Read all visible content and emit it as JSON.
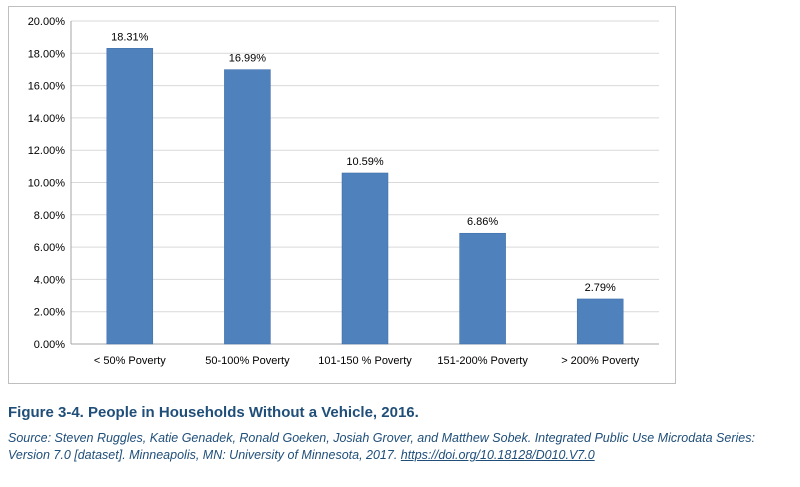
{
  "chart_data": {
    "type": "bar",
    "title": "",
    "xlabel": "",
    "ylabel": "",
    "categories": [
      "< 50% Poverty",
      "50-100% Poverty",
      "101-150 % Poverty",
      "151-200% Poverty",
      "> 200% Poverty"
    ],
    "values": [
      18.31,
      16.99,
      10.59,
      6.86,
      2.79
    ],
    "data_labels": [
      "18.31%",
      "16.99%",
      "10.59%",
      "6.86%",
      "2.79%"
    ],
    "ylim": [
      0,
      20
    ],
    "yticks": [
      0,
      2,
      4,
      6,
      8,
      10,
      12,
      14,
      16,
      18,
      20
    ],
    "ytick_labels": [
      "0.00%",
      "2.00%",
      "4.00%",
      "6.00%",
      "8.00%",
      "10.00%",
      "12.00%",
      "14.00%",
      "16.00%",
      "18.00%",
      "20.00%"
    ],
    "grid": true,
    "legend": "none",
    "bar_color": "#4f81bd",
    "grid_color": "#d9d9d9"
  },
  "caption": {
    "title": "Figure 3-4. People in Households Without a Vehicle, 2016.",
    "source_text": "Source: Steven Ruggles, Katie Genadek, Ronald Goeken, Josiah Grover, and Matthew Sobek. Integrated Public Use Microdata Series: Version 7.0 [dataset]. Minneapolis, MN: University of Minnesota, 2017. ",
    "source_link": "https://doi.org/10.18128/D010.V7.0"
  }
}
